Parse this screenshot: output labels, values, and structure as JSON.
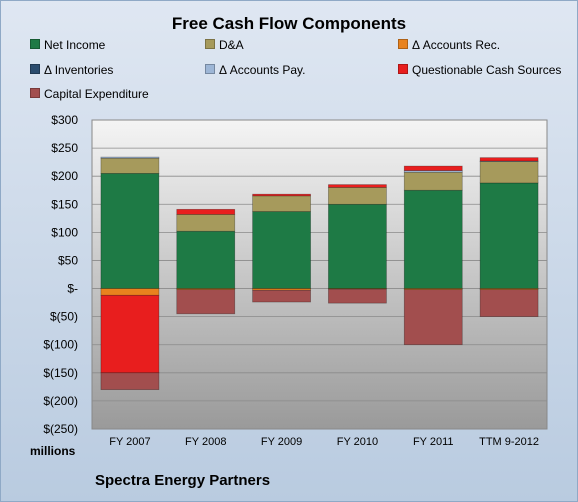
{
  "chart_data": {
    "type": "bar",
    "stacked": true,
    "title": "Free Cash Flow Components",
    "ylabel": "millions",
    "company": "Spectra Energy Partners",
    "ylim": [
      -250,
      300
    ],
    "yticks": [
      300,
      250,
      200,
      150,
      100,
      50,
      0,
      -50,
      -100,
      -150,
      -200,
      -250
    ],
    "ytick_labels": [
      "$300",
      "$250",
      "$200",
      "$150",
      "$100",
      "$50",
      "$-",
      "$(50)",
      "$(100)",
      "$(150)",
      "$(200)",
      "$(250)"
    ],
    "categories": [
      "FY 2007",
      "FY 2008",
      "FY 2009",
      "FY 2010",
      "FY 2011",
      "TTM 9-2012"
    ],
    "legend_position": "top",
    "series": [
      {
        "name": "Net Income",
        "color": "#1e7a45",
        "values": [
          205,
          102,
          137,
          150,
          175,
          188
        ]
      },
      {
        "name": "D&A",
        "color": "#a69a5c",
        "values": [
          27,
          30,
          28,
          30,
          32,
          38
        ]
      },
      {
        "name": "Δ Accounts Rec.",
        "color": "#e8821e",
        "values": [
          -12,
          -2,
          -3,
          -1,
          -2,
          -2
        ]
      },
      {
        "name": "Δ Inventories",
        "color": "#2b4c6e",
        "values": [
          0,
          0,
          0,
          0,
          0,
          0
        ]
      },
      {
        "name": "Δ Accounts Pay.",
        "color": "#9db6d6",
        "values": [
          2,
          0,
          0,
          0,
          3,
          1
        ]
      },
      {
        "name": "Questionable Cash Sources",
        "color": "#e81e1e",
        "values": [
          -138,
          9,
          3,
          5,
          8,
          6
        ]
      },
      {
        "name": "Capital Expenditure",
        "color": "#a24e4e",
        "values": [
          -30,
          -43,
          -21,
          -25,
          -98,
          -48
        ]
      }
    ]
  }
}
